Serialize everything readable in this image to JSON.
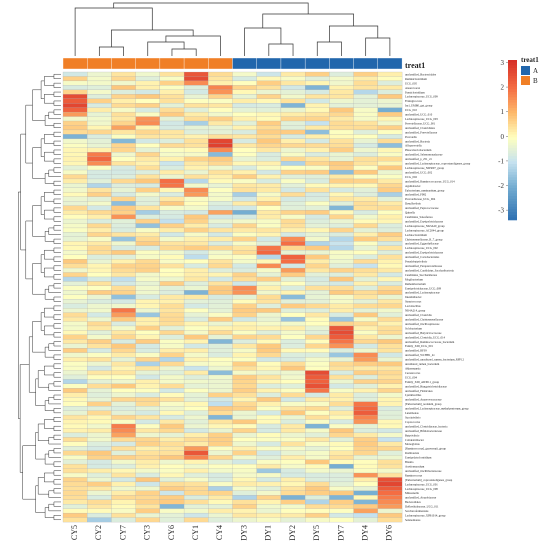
{
  "chart_data": {
    "type": "heatmap",
    "title": "",
    "annotation_title": "treat1",
    "columns": [
      "CY5",
      "CY2",
      "CY7",
      "CY3",
      "CY6",
      "CY1",
      "CY4",
      "DY3",
      "DY1",
      "DY2",
      "DY5",
      "DY7",
      "DY4",
      "DY6"
    ],
    "column_groups": [
      "B",
      "B",
      "B",
      "B",
      "B",
      "B",
      "B",
      "A",
      "A",
      "A",
      "A",
      "A",
      "A",
      "A"
    ],
    "group_legend": [
      {
        "label": "A",
        "color": "#2166ac"
      },
      {
        "label": "B",
        "color": "#f07f26"
      }
    ],
    "colorbar": {
      "ticks": [
        3,
        2,
        1,
        0,
        -1,
        -2,
        -3
      ],
      "range": [
        -3.4,
        3.1
      ],
      "colors": [
        "#2b6db0",
        "#74add1",
        "#c6e2ef",
        "#ffffbf",
        "#fdb96b",
        "#f46d43",
        "#d73027"
      ]
    },
    "rows": [
      "unclassified_Bacteroidales",
      "Ruminiclostridium",
      "UCG_005",
      "Anaerovorax",
      "Paeniclostridium",
      "Lachnospiraceae_UCG_009",
      "Frisingicoccus",
      "Incl_UMB0_gut_group",
      "UCG_010",
      "unclassified_UCG_010",
      "Lachnospiraceae_UCG_003",
      "Prevotellaceae_UCG_001",
      "unclassified_Clostridiales",
      "unclassified_Prevotellaceae",
      "Prevotella",
      "unclassified_Bacteria",
      "Alloprevotella",
      "Phascolarctobacterium",
      "unclassified_Selenomonadaceae",
      "unclassified_p_251_o5",
      "unclassified_Lachnospiraceae_coprostanoligenes_group",
      "Lachnospiraceae_ND3007_group",
      "unclassified_UCG_002",
      "UCG_002",
      "unclassified_Ruminococcaceae_UCG_014",
      "Agathobacter",
      "Eubacterium_ruminantium_group",
      "unclassified_F082",
      "Prevotellaceae_UCG_004",
      "Desulfovibrio",
      "unclassified_Peptococcaceae",
      "Quinella",
      "Candidatus_Soleaferrea",
      "unclassified_Erysipelotrichaceae",
      "Lachnospiraceae_NK3A20_group",
      "Lachnospiraceae_AC2044_group",
      "Lachnoclostridium",
      "Christensenellaceae_R_7_group",
      "unclassified_Eggerthellaceae",
      "Lachnospiraceae_UCG_002",
      "unclassified_Erysipelotrichaceae",
      "unclassified_Coriobacteriales",
      "Pseudobutyrivibrio",
      "unclassified_Paraprevotellaceae",
      "unclassified_Candidatus_Saccharibacteria",
      "Candidatus_Saccharimonas",
      "Mogibacterium",
      "Ruthenibacterium",
      "Erysipelotrichaceae_UCG_009",
      "unclassified_Lachnospiraceae",
      "Intestinibacter",
      "Streptococcus",
      "Lactobacillus",
      "NK4A214_group",
      "unclassified_Clostridia",
      "unclassified_Christensenellaceae",
      "unclassified_Oscillospiraceae",
      "Solobacterium",
      "unclassified_Butyricicoccaceae",
      "unclassified_Clostridia_UCG_014",
      "unclassified_Ruminococcaceae_bacterium",
      "Family_XIII_UCG_001",
      "unclassified_RF39",
      "unclassified_WCHB1_41",
      "unclassified_uncultured_rumen_bacterium_RFP12",
      "uncultured_rumen_bacterium",
      "Akkermansia",
      "Cerasicoccus",
      "UCG_004",
      "Family_XIII_AD3011_group",
      "unclassified_Hungateiclostridiaceae",
      "unclassified_Firmicutes",
      "Lysinibacillus",
      "unclassified_Anaerovoracaceae",
      "[Eubacterium]_nodatum_group",
      "unclassified_Lachnospiraceae_methylpentosum_group",
      "Luteimonas",
      "Succinivibrio",
      "Coprococcus",
      "unclassified_Clostridiaceae_bacteria",
      "unclassified_Bifidobacteriaceae",
      "Butyrivibrio",
      "Colidextribacter",
      "Monoglobus",
      "[Ruminococcus]_gauvreauii_group",
      "Romboutsia",
      "Erysipelatoclostridium",
      "Blautia",
      "Acetitomaculum",
      "unclassified_Oscillibacteraceae",
      "Ruminococcus",
      "[Eubacterium]_coprostanoligenes_group",
      "Lachnospiraceae_UCG_001",
      "Lachnospiraceae_UCG_008",
      "Mitsuokella",
      "unclassified_Atopobiaceae",
      "Bacteroidales",
      "Defluviitaleaceae_UCG_011",
      "Saccharofermentans",
      "Lachnospiraceae_XPB1014_group",
      "Selenomonas"
    ],
    "highlights": [
      {
        "row": 0,
        "col": 5,
        "v": 2.4
      },
      {
        "row": 1,
        "col": 5,
        "v": 2.6
      },
      {
        "row": 2,
        "col": 5,
        "v": 1.6
      },
      {
        "row": 3,
        "col": 6,
        "v": 1.7
      },
      {
        "row": 4,
        "col": 6,
        "v": 1.5
      },
      {
        "row": 5,
        "col": 0,
        "v": 2.6
      },
      {
        "row": 6,
        "col": 0,
        "v": 2.3
      },
      {
        "row": 7,
        "col": 0,
        "v": 2.7
      },
      {
        "row": 8,
        "col": 0,
        "v": 2.2
      },
      {
        "row": 9,
        "col": 0,
        "v": 1.4
      },
      {
        "row": 10,
        "col": 3,
        "v": 1.5
      },
      {
        "row": 11,
        "col": 3,
        "v": 1.6
      },
      {
        "row": 12,
        "col": 2,
        "v": 1.3
      },
      {
        "row": 15,
        "col": 6,
        "v": 2.7
      },
      {
        "row": 16,
        "col": 6,
        "v": 2.8
      },
      {
        "row": 17,
        "col": 6,
        "v": 1.6
      },
      {
        "row": 18,
        "col": 1,
        "v": 1.8
      },
      {
        "row": 19,
        "col": 1,
        "v": 2.1
      },
      {
        "row": 20,
        "col": 1,
        "v": 1.6
      },
      {
        "row": 24,
        "col": 4,
        "v": 2.0
      },
      {
        "row": 25,
        "col": 4,
        "v": 1.9
      },
      {
        "row": 26,
        "col": 5,
        "v": 1.6
      },
      {
        "row": 27,
        "col": 5,
        "v": 1.4
      },
      {
        "row": 31,
        "col": 6,
        "v": 1.3
      },
      {
        "row": 32,
        "col": 2,
        "v": 1.5
      },
      {
        "row": 37,
        "col": 9,
        "v": 1.6
      },
      {
        "row": 38,
        "col": 9,
        "v": 2.0
      },
      {
        "row": 39,
        "col": 8,
        "v": 1.9
      },
      {
        "row": 40,
        "col": 8,
        "v": 2.1
      },
      {
        "row": 41,
        "col": 9,
        "v": 2.2
      },
      {
        "row": 42,
        "col": 9,
        "v": 2.0
      },
      {
        "row": 43,
        "col": 8,
        "v": 1.6
      },
      {
        "row": 44,
        "col": 9,
        "v": 1.4
      },
      {
        "row": 48,
        "col": 7,
        "v": 1.6
      },
      {
        "row": 49,
        "col": 7,
        "v": 1.5
      },
      {
        "row": 53,
        "col": 2,
        "v": 1.9
      },
      {
        "row": 54,
        "col": 2,
        "v": 1.4
      },
      {
        "row": 57,
        "col": 11,
        "v": 2.4
      },
      {
        "row": 58,
        "col": 11,
        "v": 2.6
      },
      {
        "row": 59,
        "col": 11,
        "v": 2.3
      },
      {
        "row": 60,
        "col": 11,
        "v": 1.9
      },
      {
        "row": 61,
        "col": 11,
        "v": 1.5
      },
      {
        "row": 63,
        "col": 12,
        "v": 1.6
      },
      {
        "row": 64,
        "col": 12,
        "v": 1.4
      },
      {
        "row": 67,
        "col": 10,
        "v": 2.6
      },
      {
        "row": 68,
        "col": 10,
        "v": 2.3
      },
      {
        "row": 69,
        "col": 10,
        "v": 2.2
      },
      {
        "row": 70,
        "col": 10,
        "v": 2.5
      },
      {
        "row": 71,
        "col": 10,
        "v": 1.9
      },
      {
        "row": 74,
        "col": 12,
        "v": 1.9
      },
      {
        "row": 75,
        "col": 12,
        "v": 2.1
      },
      {
        "row": 76,
        "col": 12,
        "v": 2.3
      },
      {
        "row": 77,
        "col": 12,
        "v": 1.7
      },
      {
        "row": 78,
        "col": 12,
        "v": 1.5
      },
      {
        "row": 79,
        "col": 2,
        "v": 1.8
      },
      {
        "row": 80,
        "col": 2,
        "v": 1.6
      },
      {
        "row": 81,
        "col": 2,
        "v": 1.3
      },
      {
        "row": 84,
        "col": 5,
        "v": 1.4
      },
      {
        "row": 85,
        "col": 5,
        "v": 2.4
      },
      {
        "row": 86,
        "col": 5,
        "v": 1.7
      },
      {
        "row": 90,
        "col": 12,
        "v": 1.5
      },
      {
        "row": 91,
        "col": 13,
        "v": 2.5
      },
      {
        "row": 92,
        "col": 13,
        "v": 2.7
      },
      {
        "row": 93,
        "col": 13,
        "v": 2.3
      },
      {
        "row": 94,
        "col": 13,
        "v": 2.0
      },
      {
        "row": 95,
        "col": 13,
        "v": 1.8
      },
      {
        "row": 96,
        "col": 13,
        "v": 1.6
      },
      {
        "row": 97,
        "col": 13,
        "v": 1.4
      },
      {
        "row": 98,
        "col": 12,
        "v": 1.3
      }
    ]
  }
}
